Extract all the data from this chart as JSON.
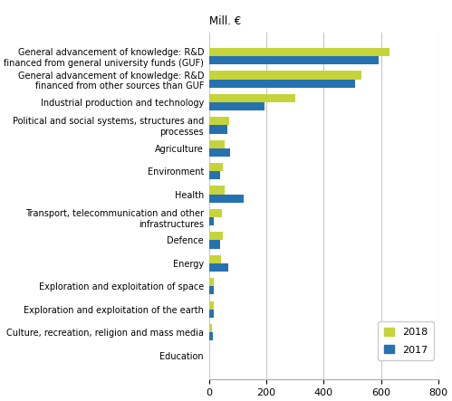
{
  "categories": [
    "General advancement of knowledge: R&D\nfinanced from general university funds (GUF)",
    "General advancement of knowledge: R&D\nfinanced from other sources than GUF",
    "Industrial production and technology",
    "Political and social systems, structures and\nprocesses",
    "Agriculture",
    "Environment",
    "Health",
    "Transport, telecommunication and other\ninfrastructures",
    "Defence",
    "Energy",
    "Exploration and exploitation of space",
    "Exploration and exploitation of the earth",
    "Culture, recreation, religion and mass media",
    "Education"
  ],
  "values_2018": [
    630,
    530,
    300,
    70,
    55,
    50,
    55,
    45,
    50,
    42,
    18,
    18,
    10,
    2
  ],
  "values_2017": [
    590,
    510,
    195,
    65,
    75,
    38,
    120,
    18,
    38,
    68,
    17,
    17,
    14,
    0
  ],
  "color_2018": "#c5d43b",
  "color_2017": "#2672b0",
  "mill_label": "Mill. €",
  "xlim": [
    0,
    800
  ],
  "xticks": [
    0,
    200,
    400,
    600,
    800
  ],
  "legend_2018": "2018",
  "legend_2017": "2017",
  "bar_height": 0.36,
  "background_color": "#ffffff",
  "grid_color": "#c8c8c8",
  "label_fontsize": 7.0,
  "tick_fontsize": 8.0,
  "mill_fontsize": 8.5
}
